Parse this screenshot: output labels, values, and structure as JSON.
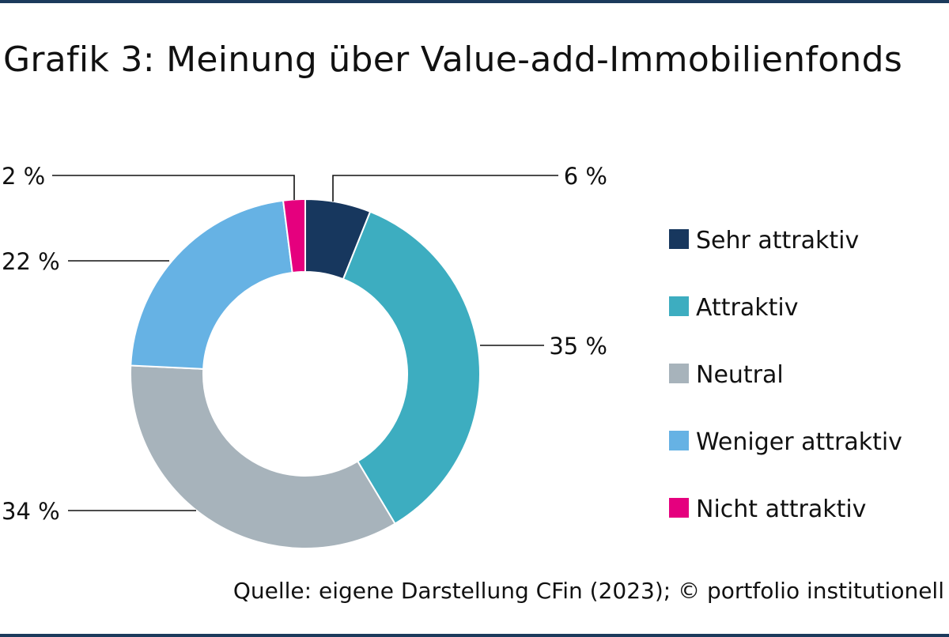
{
  "title": "Grafik 3: Meinung über Value-add-Immobilienfonds",
  "source": "Quelle: eigene Darstellung CFin (2023); © portfolio institutionell",
  "chart_data": {
    "type": "pie",
    "donut": true,
    "title": "Grafik 3: Meinung über Value-add-Immobilienfonds",
    "legend_position": "right",
    "categories": [
      "Sehr attraktiv",
      "Attraktiv",
      "Neutral",
      "Weniger attraktiv",
      "Nicht attraktiv"
    ],
    "values": [
      6,
      35,
      34,
      22,
      2
    ],
    "value_labels": [
      "6 %",
      "35 %",
      "34 %",
      "22 %",
      "2 %"
    ],
    "colors": [
      "#17375e",
      "#3dadc0",
      "#a7b3bb",
      "#66b2e4",
      "#e5007e"
    ]
  }
}
